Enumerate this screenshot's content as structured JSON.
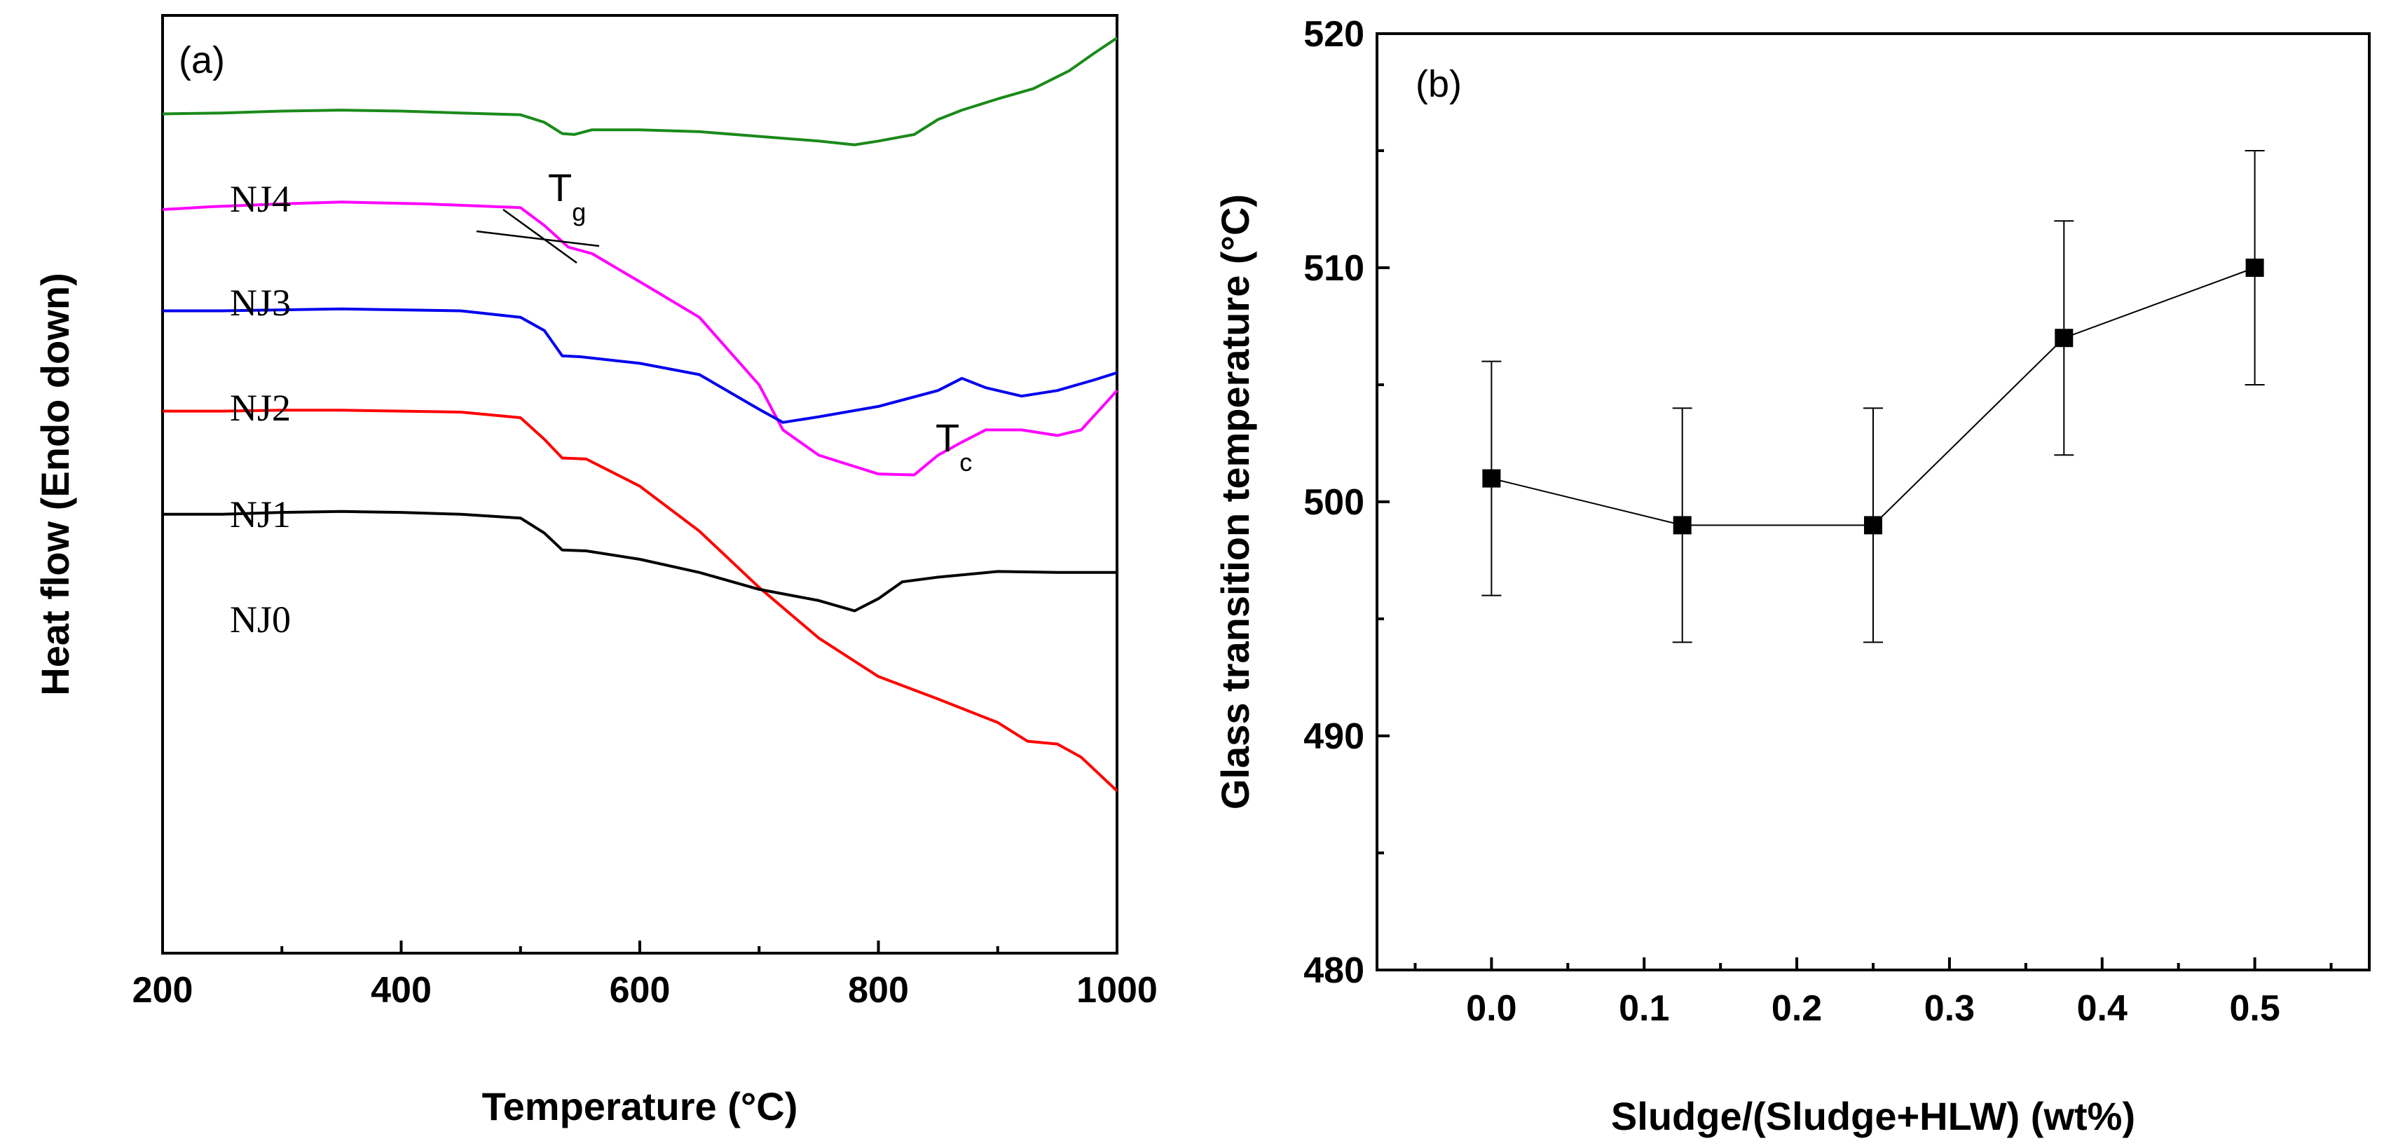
{
  "chart_data": [
    {
      "type": "line",
      "panel_label": "(a)",
      "xlabel": "Temperature (°C)",
      "ylabel": "Heat flow (Endo down)",
      "xlim": [
        200,
        1000
      ],
      "ylim": [
        0,
        100
      ],
      "x_ticks": [
        "200",
        "400",
        "600",
        "800",
        "1000"
      ],
      "y_ticks_shown": false,
      "series": [
        {
          "name": "NJ4",
          "color": "#1a8a1a",
          "points": [
            [
              200,
              89.5
            ],
            [
              250,
              89.6
            ],
            [
              300,
              89.8
            ],
            [
              350,
              89.9
            ],
            [
              400,
              89.8
            ],
            [
              450,
              89.6
            ],
            [
              500,
              89.4
            ],
            [
              520,
              88.6
            ],
            [
              535,
              87.4
            ],
            [
              545,
              87.3
            ],
            [
              560,
              87.8
            ],
            [
              600,
              87.8
            ],
            [
              650,
              87.6
            ],
            [
              700,
              87.1
            ],
            [
              750,
              86.6
            ],
            [
              780,
              86.2
            ],
            [
              800,
              86.6
            ],
            [
              830,
              87.3
            ],
            [
              850,
              88.9
            ],
            [
              870,
              89.9
            ],
            [
              900,
              91.1
            ],
            [
              930,
              92.2
            ],
            [
              960,
              94.1
            ],
            [
              980,
              95.9
            ],
            [
              1000,
              97.6
            ]
          ]
        },
        {
          "name": "NJ3",
          "color": "#ff00ff",
          "points": [
            [
              200,
              79.3
            ],
            [
              240,
              79.6
            ],
            [
              300,
              79.9
            ],
            [
              350,
              80.1
            ],
            [
              420,
              79.9
            ],
            [
              500,
              79.5
            ],
            [
              520,
              77.6
            ],
            [
              540,
              75.3
            ],
            [
              560,
              74.6
            ],
            [
              600,
              71.6
            ],
            [
              650,
              67.8
            ],
            [
              700,
              60.6
            ],
            [
              720,
              55.8
            ],
            [
              750,
              53.1
            ],
            [
              800,
              51.1
            ],
            [
              830,
              51.0
            ],
            [
              850,
              53.1
            ],
            [
              870,
              54.5
            ],
            [
              890,
              55.8
            ],
            [
              920,
              55.8
            ],
            [
              950,
              55.2
            ],
            [
              970,
              55.8
            ],
            [
              985,
              57.9
            ],
            [
              1000,
              60.0
            ]
          ]
        },
        {
          "name": "NJ2",
          "color": "#0000ee",
          "points": [
            [
              200,
              68.5
            ],
            [
              250,
              68.5
            ],
            [
              300,
              68.6
            ],
            [
              350,
              68.7
            ],
            [
              400,
              68.6
            ],
            [
              450,
              68.5
            ],
            [
              500,
              67.8
            ],
            [
              520,
              66.4
            ],
            [
              535,
              63.7
            ],
            [
              550,
              63.6
            ],
            [
              600,
              62.9
            ],
            [
              650,
              61.7
            ],
            [
              700,
              58.0
            ],
            [
              720,
              56.6
            ],
            [
              750,
              57.2
            ],
            [
              800,
              58.3
            ],
            [
              850,
              60.0
            ],
            [
              870,
              61.3
            ],
            [
              890,
              60.3
            ],
            [
              920,
              59.4
            ],
            [
              950,
              60.0
            ],
            [
              980,
              61.1
            ],
            [
              1000,
              61.9
            ]
          ]
        },
        {
          "name": "NJ1",
          "color": "#ff0000",
          "points": [
            [
              200,
              57.8
            ],
            [
              250,
              57.8
            ],
            [
              300,
              57.9
            ],
            [
              350,
              57.9
            ],
            [
              400,
              57.8
            ],
            [
              450,
              57.7
            ],
            [
              500,
              57.1
            ],
            [
              520,
              54.8
            ],
            [
              535,
              52.8
            ],
            [
              555,
              52.7
            ],
            [
              600,
              49.8
            ],
            [
              650,
              45.0
            ],
            [
              700,
              39.0
            ],
            [
              750,
              33.6
            ],
            [
              800,
              29.5
            ],
            [
              850,
              27.1
            ],
            [
              900,
              24.6
            ],
            [
              925,
              22.6
            ],
            [
              950,
              22.3
            ],
            [
              970,
              20.9
            ],
            [
              1000,
              17.3
            ]
          ]
        },
        {
          "name": "NJ0",
          "color": "#000000",
          "points": [
            [
              200,
              46.8
            ],
            [
              250,
              46.8
            ],
            [
              300,
              47.0
            ],
            [
              350,
              47.1
            ],
            [
              400,
              47.0
            ],
            [
              450,
              46.8
            ],
            [
              500,
              46.4
            ],
            [
              520,
              44.8
            ],
            [
              535,
              43.0
            ],
            [
              555,
              42.9
            ],
            [
              600,
              42.0
            ],
            [
              650,
              40.6
            ],
            [
              700,
              38.8
            ],
            [
              750,
              37.6
            ],
            [
              780,
              36.5
            ],
            [
              800,
              37.8
            ],
            [
              820,
              39.6
            ],
            [
              850,
              40.1
            ],
            [
              900,
              40.7
            ],
            [
              950,
              40.6
            ],
            [
              1000,
              40.6
            ]
          ]
        }
      ],
      "curve_labels": [
        "NJ4",
        "NJ3",
        "NJ2",
        "NJ1",
        "NJ0"
      ],
      "annotations": [
        {
          "main": "T",
          "sub": "g"
        },
        {
          "main": "T",
          "sub": "c"
        }
      ]
    },
    {
      "type": "scatter",
      "panel_label": "(b)",
      "xlabel": "Sludge/(Sludge+HLW) (wt%)",
      "ylabel": "Glass transition temperature (°C)",
      "xlim": [
        -0.075,
        0.575
      ],
      "ylim": [
        480,
        520
      ],
      "x_ticks": [
        "0.0",
        "0.1",
        "0.2",
        "0.3",
        "0.4",
        "0.5"
      ],
      "y_ticks": [
        "480",
        "490",
        "500",
        "510",
        "520"
      ],
      "series": [
        {
          "name": "Tg",
          "x": [
            0.0,
            0.125,
            0.25,
            0.375,
            0.5
          ],
          "y": [
            501,
            499,
            499,
            507,
            510
          ],
          "error": [
            5,
            5,
            5,
            5,
            5
          ]
        }
      ]
    }
  ]
}
